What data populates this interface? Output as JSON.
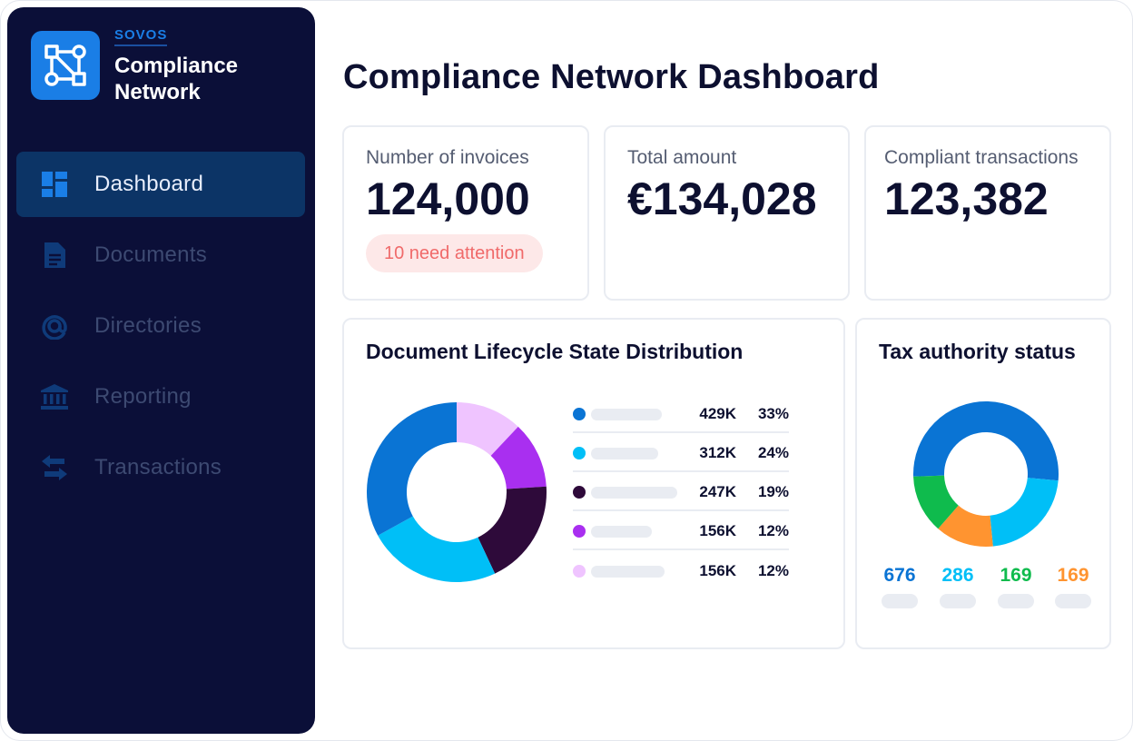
{
  "brand": {
    "company": "SOVOS",
    "product_line1": "Compliance",
    "product_line2": "Network",
    "logo_icon": "network-nodes-icon"
  },
  "sidebar": {
    "items": [
      {
        "label": "Dashboard",
        "icon": "dashboard-grid-icon",
        "active": true
      },
      {
        "label": "Documents",
        "icon": "document-icon",
        "active": false
      },
      {
        "label": "Directories",
        "icon": "at-sign-icon",
        "active": false
      },
      {
        "label": "Reporting",
        "icon": "bank-icon",
        "active": false
      },
      {
        "label": "Transactions",
        "icon": "swap-arrows-icon",
        "active": false
      }
    ]
  },
  "page": {
    "title": "Compliance Network Dashboard"
  },
  "kpis": [
    {
      "label": "Number of invoices",
      "value": "124,000",
      "badge": "10 need attention"
    },
    {
      "label": "Total amount",
      "value": "€134,028"
    },
    {
      "label": "Compliant transactions",
      "value": "123,382"
    }
  ],
  "lifecycle": {
    "title": "Document Lifecycle State Distribution",
    "rows": [
      {
        "count": "429K",
        "pct": "33%",
        "color": "#0a74d4"
      },
      {
        "count": "312K",
        "pct": "24%",
        "color": "#00bff7"
      },
      {
        "count": "247K",
        "pct": "19%",
        "color": "#2e0a3a"
      },
      {
        "count": "156K",
        "pct": "12%",
        "color": "#a92ff0"
      },
      {
        "count": "156K",
        "pct": "12%",
        "color": "#efc4ff"
      }
    ]
  },
  "tax": {
    "title": "Tax authority status",
    "values": [
      {
        "value": "676",
        "color": "#0a74d4"
      },
      {
        "value": "286",
        "color": "#00bff7"
      },
      {
        "value": "169",
        "color": "#0fbb4d"
      },
      {
        "value": "169",
        "color": "#ff9430"
      }
    ]
  },
  "chart_data": [
    {
      "type": "pie",
      "title": "Document Lifecycle State Distribution",
      "categories": [
        "",
        "",
        "",
        "",
        ""
      ],
      "values": [
        429,
        312,
        247,
        156,
        156
      ],
      "percent": [
        33,
        24,
        19,
        12,
        12
      ],
      "colors": [
        "#0a74d4",
        "#00bff7",
        "#2e0a3a",
        "#a92ff0",
        "#efc4ff"
      ],
      "legend": "right"
    },
    {
      "type": "pie",
      "title": "Tax authority status",
      "values": [
        676,
        286,
        169,
        169
      ],
      "colors": [
        "#0a74d4",
        "#00bff7",
        "#ff9430",
        "#0fbb4d"
      ],
      "legend": "bottom"
    }
  ]
}
